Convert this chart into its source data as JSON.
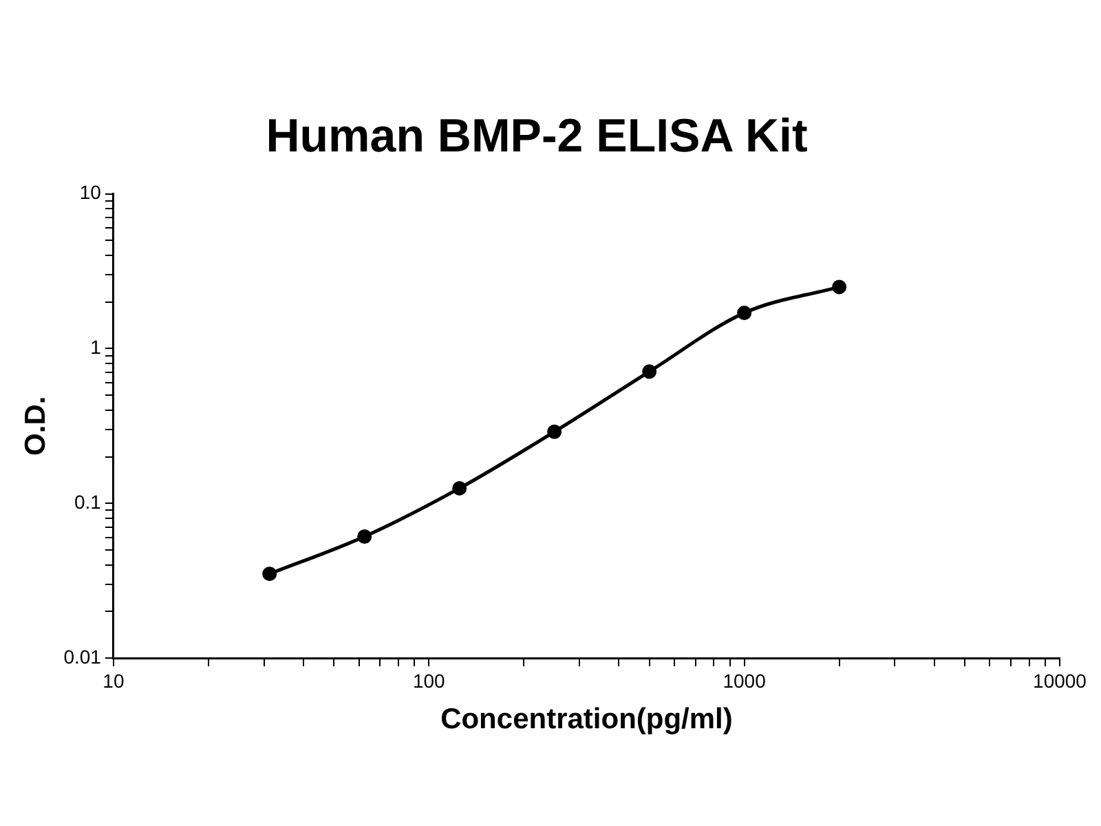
{
  "chart_data": {
    "type": "line",
    "title": "Human BMP-2 ELISA Kit",
    "xlabel": "Concentration(pg/ml)",
    "ylabel": "O.D.",
    "x": [
      31.25,
      62.5,
      125,
      250,
      500,
      1000,
      2000
    ],
    "series": [
      {
        "color": "#000000",
        "values": [
          0.035,
          0.061,
          0.125,
          0.29,
          0.71,
          1.7,
          2.5
        ]
      }
    ],
    "log": "xy",
    "marker": "circle",
    "xlim": [
      10,
      10000
    ],
    "ylim": [
      0.01,
      10
    ],
    "xticks": [
      10,
      {
        "value": 20,
        "label": null
      },
      {
        "value": 30,
        "label": null
      },
      {
        "value": 40,
        "label": null
      },
      {
        "value": 50,
        "label": null
      },
      {
        "value": 60,
        "label": null
      },
      {
        "value": 70,
        "label": null
      },
      {
        "value": 80,
        "label": null
      },
      {
        "value": 90,
        "label": null
      },
      100,
      {
        "value": 200,
        "label": null
      },
      {
        "value": 300,
        "label": null
      },
      {
        "value": 400,
        "label": null
      },
      {
        "value": 500,
        "label": null
      },
      {
        "value": 600,
        "label": null
      },
      {
        "value": 700,
        "label": null
      },
      {
        "value": 800,
        "label": null
      },
      {
        "value": 900,
        "label": null
      },
      1000,
      {
        "value": 2000,
        "label": null
      },
      {
        "value": 3000,
        "label": null
      },
      {
        "value": 4000,
        "label": null
      },
      {
        "value": 5000,
        "label": null
      },
      {
        "value": 6000,
        "label": null
      },
      {
        "value": 7000,
        "label": null
      },
      {
        "value": 8000,
        "label": null
      },
      {
        "value": 9000,
        "label": null
      },
      10000
    ],
    "yticks": [
      0.01,
      {
        "value": 0.02,
        "label": null
      },
      {
        "value": 0.03,
        "label": null
      },
      {
        "value": 0.04,
        "label": null
      },
      {
        "value": 0.05,
        "label": null
      },
      {
        "value": 0.06,
        "label": null
      },
      {
        "value": 0.07,
        "label": null
      },
      {
        "value": 0.08,
        "label": null
      },
      {
        "value": 0.09,
        "label": null
      },
      0.1,
      {
        "value": 0.2,
        "label": null
      },
      {
        "value": 0.3,
        "label": null
      },
      {
        "value": 0.4,
        "label": null
      },
      {
        "value": 0.5,
        "label": null
      },
      {
        "value": 0.6,
        "label": null
      },
      {
        "value": 0.7,
        "label": null
      },
      {
        "value": 0.8,
        "label": null
      },
      {
        "value": 0.9,
        "label": null
      },
      1,
      {
        "value": 2,
        "label": null
      },
      {
        "value": 3,
        "label": null
      },
      {
        "value": 4,
        "label": null
      },
      {
        "value": 5,
        "label": null
      },
      {
        "value": 6,
        "label": null
      },
      {
        "value": 7,
        "label": null
      },
      {
        "value": 8,
        "label": null
      },
      {
        "value": 9,
        "label": null
      },
      10
    ]
  }
}
